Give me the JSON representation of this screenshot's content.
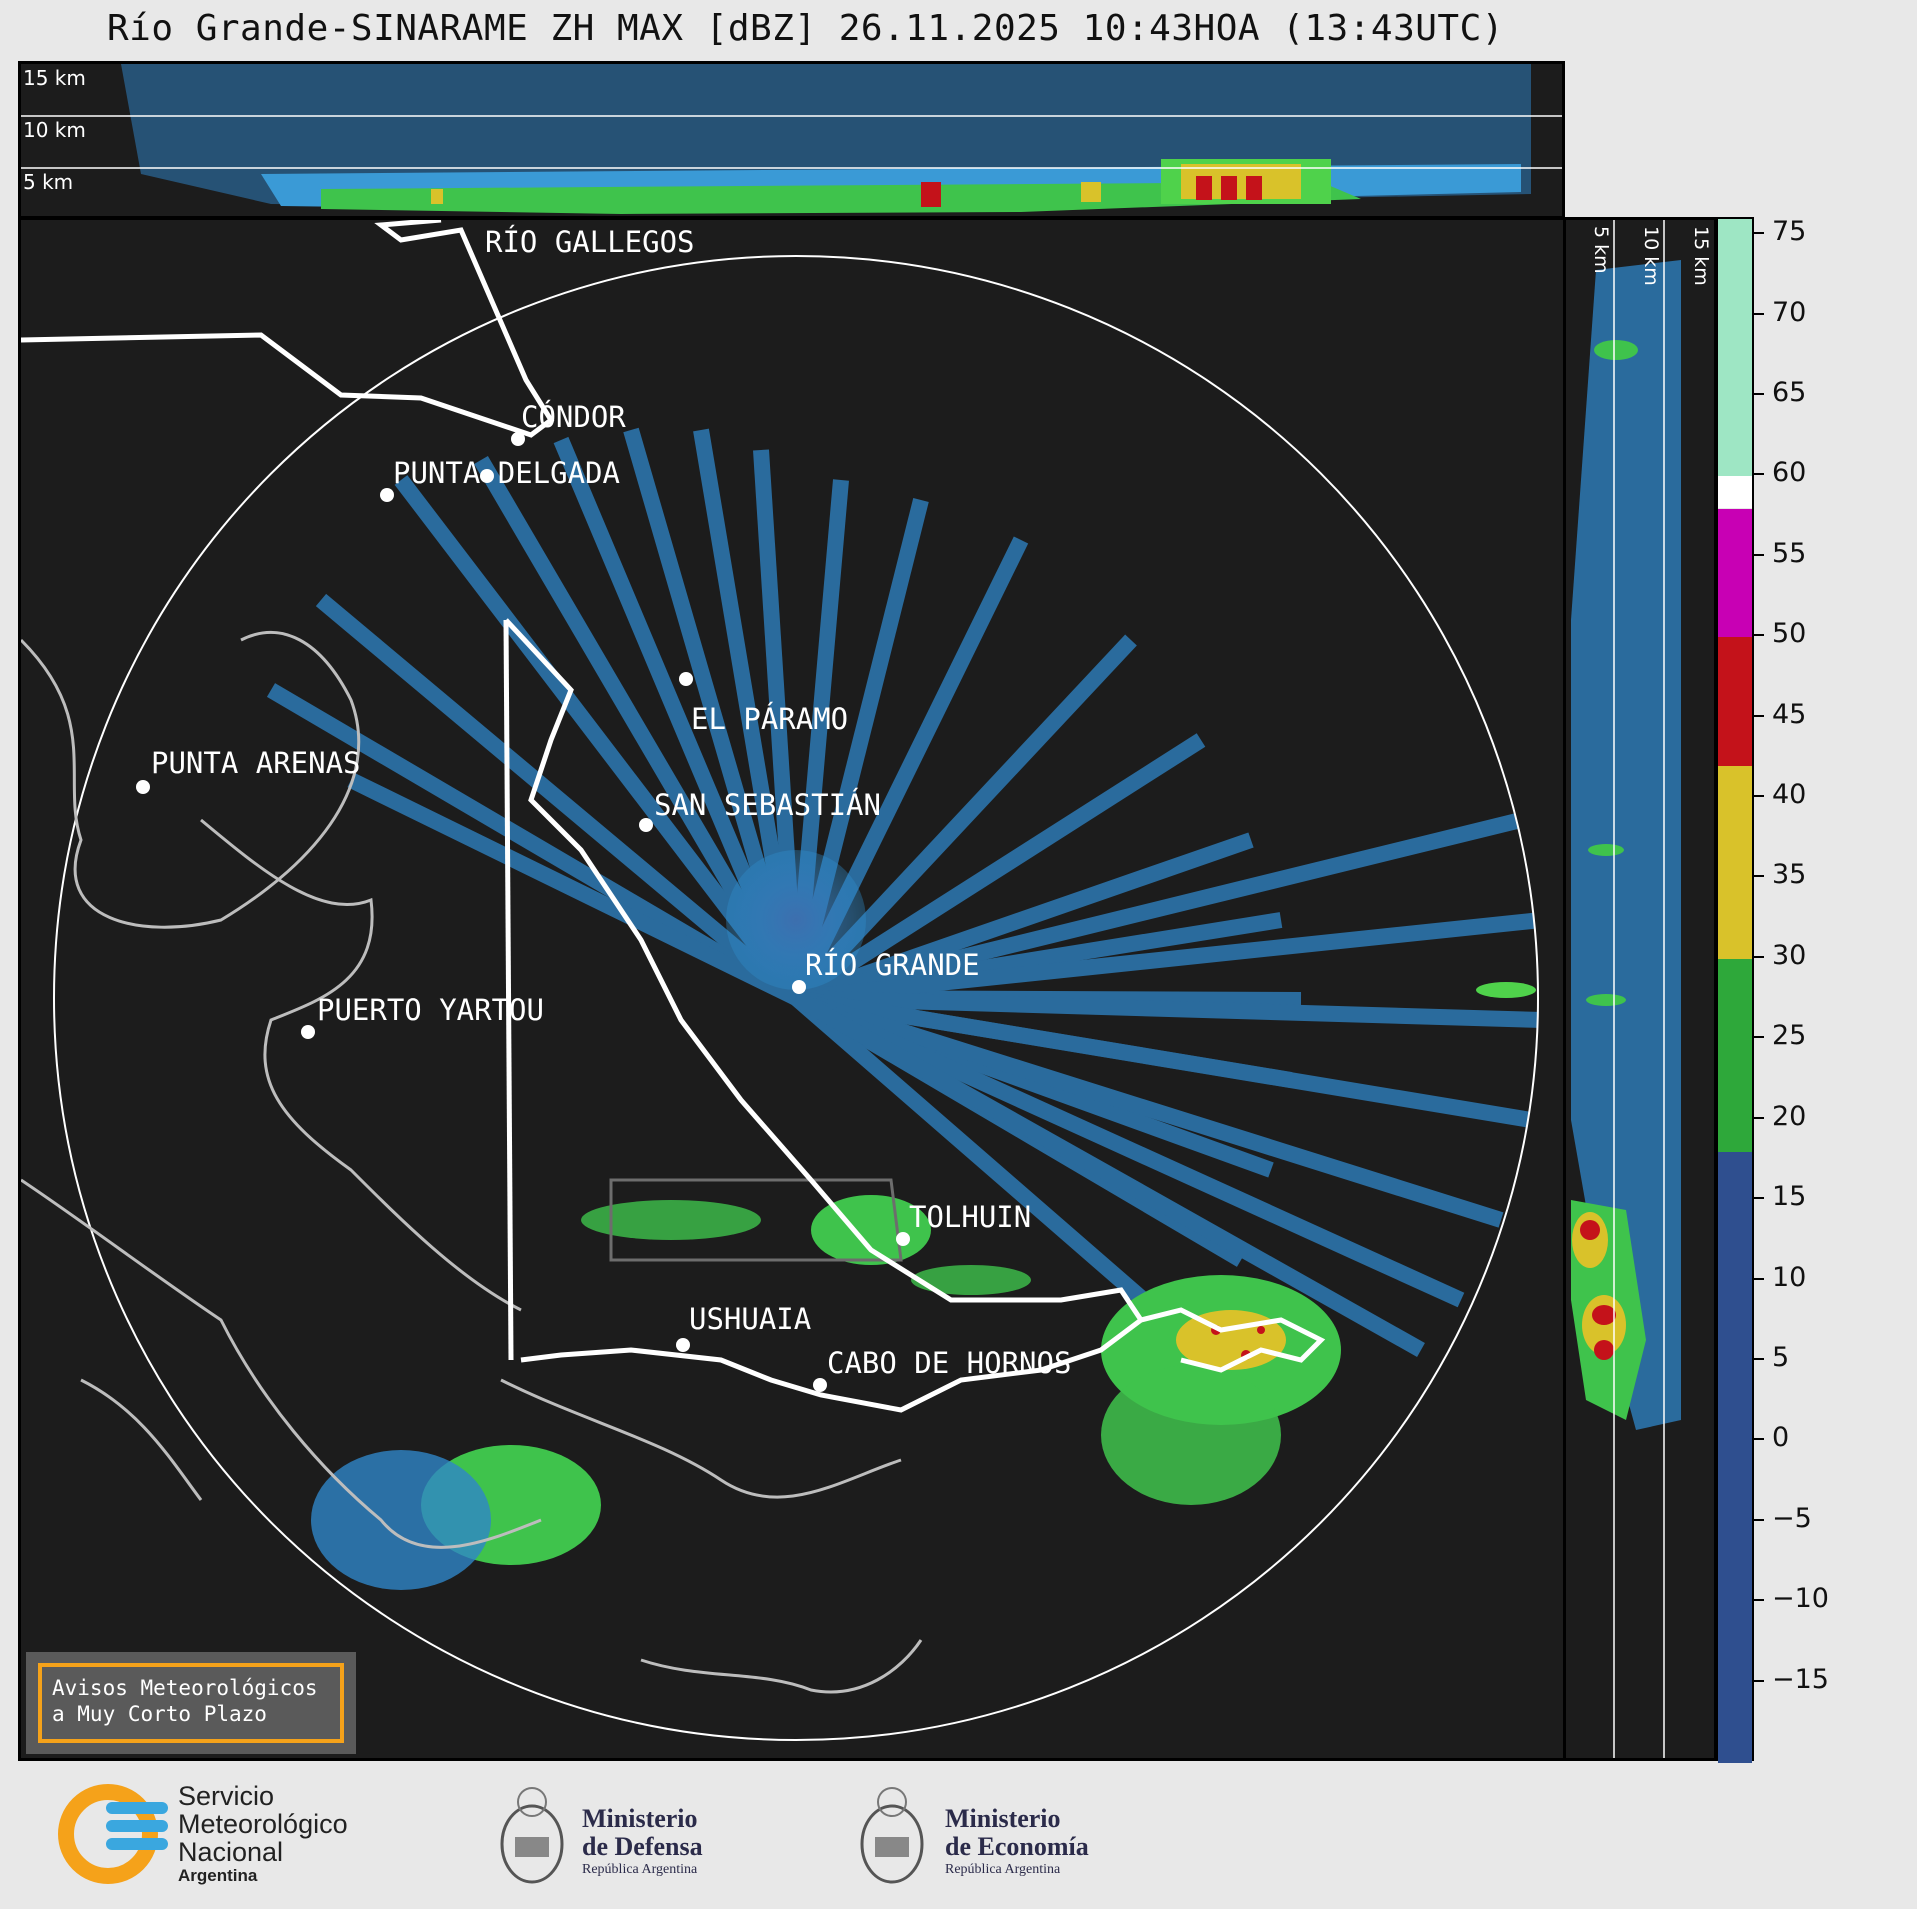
{
  "title": "Río Grande-SINARAME ZH MAX [dBZ] 26.11.2025 10:43HOA (13:43UTC)",
  "top_panel": {
    "labels": [
      "15 km",
      "10 km",
      "5 km"
    ]
  },
  "side_panel": {
    "labels": [
      "5 km",
      "10 km",
      "15 km"
    ]
  },
  "cities": [
    {
      "name": "RÍO GALLEGOS"
    },
    {
      "name": "CÓNDOR"
    },
    {
      "name": "PUNTA DELGADA"
    },
    {
      "name": "EL PÁRAMO"
    },
    {
      "name": "SAN SEBASTIÁN"
    },
    {
      "name": "PUNTA ARENAS"
    },
    {
      "name": "RÍO GRANDE"
    },
    {
      "name": "PUERTO YARTOU"
    },
    {
      "name": "TOLHUIN"
    },
    {
      "name": "USHUAIA"
    },
    {
      "name": "CABO DE HORNOS"
    }
  ],
  "colorbar": {
    "unit": "dBZ",
    "min": -20,
    "max": 76,
    "ticks": [
      "75",
      "70",
      "65",
      "60",
      "55",
      "50",
      "45",
      "40",
      "35",
      "30",
      "25",
      "20",
      "15",
      "10",
      "5",
      "0",
      "−5",
      "−10",
      "−15"
    ],
    "bands": [
      {
        "from": -20,
        "to": 18,
        "color": "#2f4f8f"
      },
      {
        "from": 18,
        "to": 30,
        "color": "#2ea83a"
      },
      {
        "from": 30,
        "to": 42,
        "color": "#d9c22a"
      },
      {
        "from": 42,
        "to": 50,
        "color": "#c4121a"
      },
      {
        "from": 50,
        "to": 58,
        "color": "#c800b4"
      },
      {
        "from": 58,
        "to": 60,
        "color": "#ffffff"
      },
      {
        "from": 60,
        "to": 76,
        "color": "#9ee6c4"
      }
    ]
  },
  "note": {
    "line1": "Avisos Meteorológicos",
    "line2": "a Muy Corto Plazo"
  },
  "logos": {
    "smn": {
      "line1": "Servicio",
      "line2": "Meteorológico",
      "line3": "Nacional",
      "line4": "Argentina"
    },
    "defensa": {
      "line1": "Ministerio",
      "line2": "de Defensa",
      "line3": "República Argentina"
    },
    "economia": {
      "line1": "Ministerio",
      "line2": "de Economía",
      "line3": "República Argentina"
    }
  }
}
